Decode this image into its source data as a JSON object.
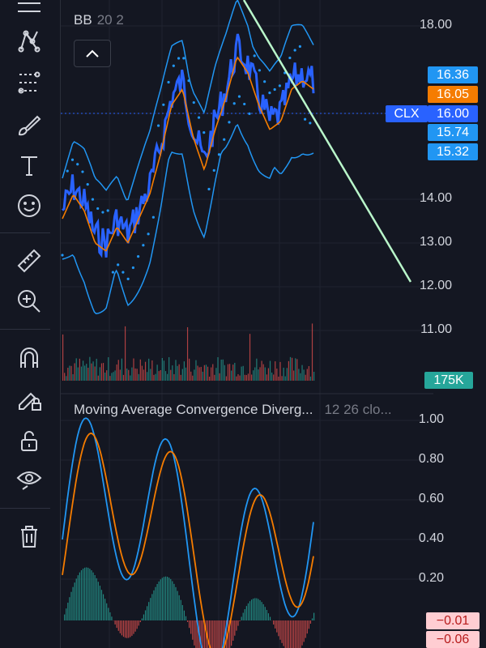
{
  "toolbar": {
    "tools": [
      {
        "name": "trend-line-icon"
      },
      {
        "name": "pattern-icon"
      },
      {
        "name": "fib-icon"
      },
      {
        "name": "brush-icon"
      },
      {
        "name": "text-icon"
      },
      {
        "name": "emoji-icon"
      },
      {
        "name": "ruler-icon"
      },
      {
        "name": "zoom-in-icon"
      },
      {
        "name": "magnet-icon"
      },
      {
        "name": "lock-drawing-icon"
      },
      {
        "name": "unlock-icon"
      },
      {
        "name": "eye-icon"
      },
      {
        "name": "trash-icon"
      }
    ]
  },
  "main_pane": {
    "legend_name": "BB",
    "legend_params": "20 2",
    "price_axis": [
      "18.00",
      "14.00",
      "13.00",
      "12.00",
      "11.00"
    ],
    "badges": [
      {
        "text": "16.36",
        "bg": "#2196f3",
        "fg": "#ffffff"
      },
      {
        "text": "16.05",
        "bg": "#f57c00",
        "fg": "#ffffff"
      },
      {
        "text": "16.00",
        "bg": "#2962ff",
        "fg": "#ffffff"
      },
      {
        "text": "15.74",
        "bg": "#2196f3",
        "fg": "#ffffff"
      },
      {
        "text": "15.32",
        "bg": "#2196f3",
        "fg": "#ffffff"
      }
    ],
    "symbol_tag": "CLX",
    "volume_badge": {
      "text": "175K",
      "bg": "#26a69a"
    }
  },
  "macd_pane": {
    "legend_name": "Moving Average Convergence Diverg...",
    "legend_params": "12 26 clo...",
    "price_axis": [
      "1.00",
      "0.80",
      "0.60",
      "0.40",
      "0.20"
    ],
    "badges": [
      {
        "text": "−0.01",
        "bg": "#ffcdd2",
        "fg": "#b71c1c"
      },
      {
        "text": "−0.06",
        "bg": "#ffcdd2",
        "fg": "#b71c1c"
      }
    ]
  },
  "colors": {
    "background": "#141722",
    "price_line": "#2962ff",
    "bb_bands": "#2196f3",
    "basis": "#f57c00",
    "trendline": "#b9f6ca",
    "volume_up": "#26a69a",
    "volume_down": "#ef5350"
  }
}
